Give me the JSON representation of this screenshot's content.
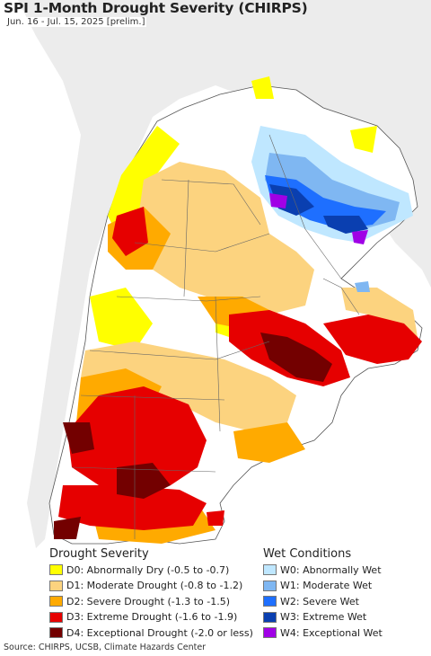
{
  "header": {
    "title": "SPI 1-Month Drought Severity (CHIRPS)",
    "subtitle": "Jun. 16 - Jul. 15, 2025 [prelim.]"
  },
  "legend": {
    "drought_title": "Drought Severity",
    "wet_title": "Wet Conditions",
    "drought_items": [
      {
        "label": "D0: Abnormally Dry (-0.5 to -0.7)",
        "color": "#ffff00"
      },
      {
        "label": "D1: Moderate Drought (-0.8 to -1.2)",
        "color": "#fcd37f"
      },
      {
        "label": "D2: Severe Drought (-1.3 to -1.5)",
        "color": "#ffaa00"
      },
      {
        "label": "D3: Extreme Drought (-1.6 to -1.9)",
        "color": "#e60000"
      },
      {
        "label": "D4: Exceptional Drought (-2.0 or less)",
        "color": "#730000"
      }
    ],
    "wet_items": [
      {
        "label": "W0: Abnormally Wet",
        "color": "#bfe7ff"
      },
      {
        "label": "W1: Moderate Wet",
        "color": "#7fb7f2"
      },
      {
        "label": "W2: Severe Wet",
        "color": "#1e6fff"
      },
      {
        "label": "W3: Extreme Wet",
        "color": "#0a3fb0"
      },
      {
        "label": "W4: Exceptional Wet",
        "color": "#a000e6"
      }
    ]
  },
  "footer": {
    "source": "Source: CHIRPS, UCSB, Climate Hazards Center"
  }
}
